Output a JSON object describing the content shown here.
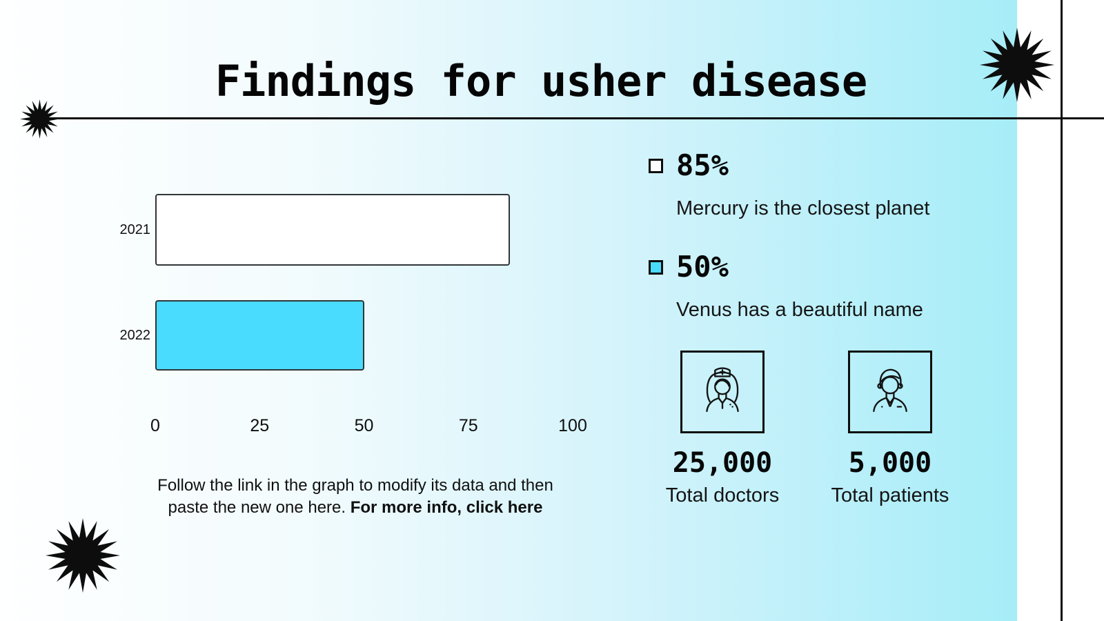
{
  "title": "Findings for usher disease",
  "chart_data": {
    "type": "bar",
    "orientation": "horizontal",
    "categories": [
      "2021",
      "2022"
    ],
    "values": [
      85,
      50
    ],
    "x_ticks": [
      0,
      25,
      50,
      75,
      100
    ],
    "xlim": [
      0,
      100
    ],
    "bar_colors": [
      "#ffffff",
      "#4adcfe"
    ],
    "bar_border_color": "#2f3539",
    "grid": false,
    "legend_position": "right-column-squares"
  },
  "note": {
    "line1": "Follow the link in the graph to modify its data and then",
    "line2_regular": "paste the new one here. ",
    "line2_bold": "For more info, click here"
  },
  "stats": [
    {
      "percent": "85%",
      "description": "Mercury is the closest planet",
      "swatch": "#ffffff"
    },
    {
      "percent": "50%",
      "description": "Venus has a beautiful name",
      "swatch": "#4adcfe"
    }
  ],
  "metrics": [
    {
      "icon": "nurse-icon",
      "value": "25,000",
      "label": "Total doctors"
    },
    {
      "icon": "doctor-icon",
      "value": "5,000",
      "label": "Total patients"
    }
  ],
  "icons": {
    "decoration": "starburst-icon",
    "legend_marker": "square-bullet"
  },
  "colors": {
    "accent_cyan": "#4adcfe",
    "background_left": "#feffff",
    "background_right": "#a6edf8",
    "line_black": "#0d0d0d"
  }
}
